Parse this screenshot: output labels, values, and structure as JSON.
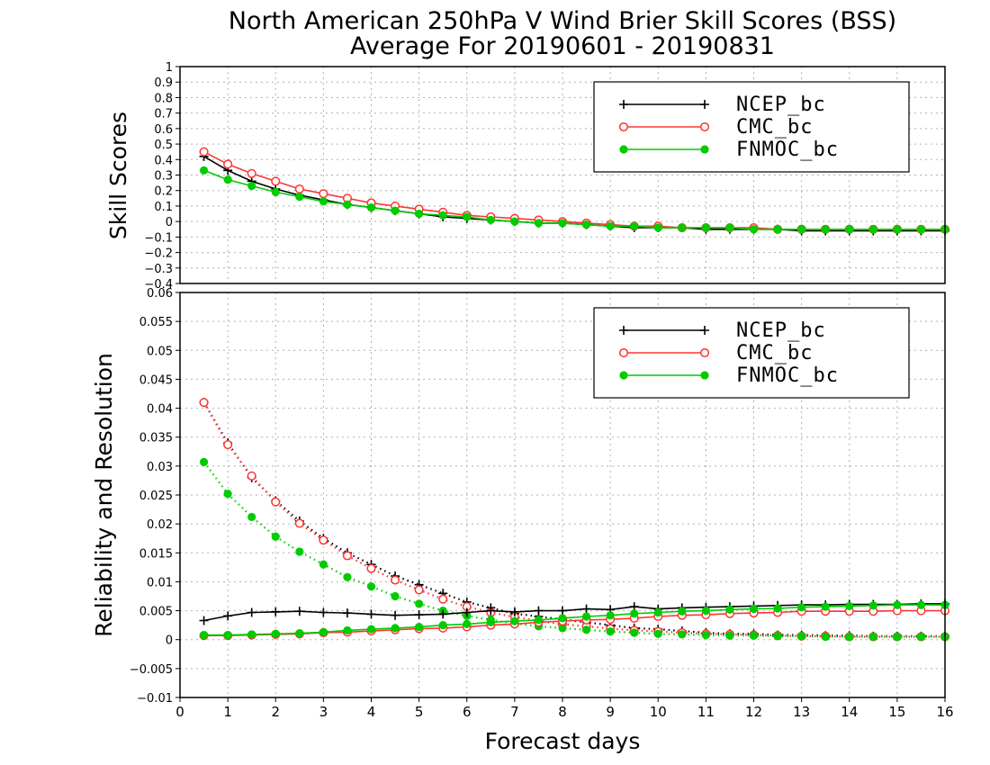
{
  "chart_data": {
    "title": "North American 250hPa V Wind Brier Skill Scores (BSS)",
    "subtitle": "Average For 20190601 - 20190831",
    "xlabel": "Forecast days",
    "xlim": [
      0,
      16
    ],
    "x_ticks": [
      "0",
      "1",
      "2",
      "3",
      "4",
      "5",
      "6",
      "7",
      "8",
      "9",
      "10",
      "11",
      "12",
      "13",
      "14",
      "15",
      "16"
    ],
    "x": [
      0.5,
      1,
      1.5,
      2,
      2.5,
      3,
      3.5,
      4,
      4.5,
      5,
      5.5,
      6,
      6.5,
      7,
      7.5,
      8,
      8.5,
      9,
      9.5,
      10,
      10.5,
      11,
      11.5,
      12,
      12.5,
      13,
      13.5,
      14,
      14.5,
      15,
      15.5,
      16
    ],
    "grid": true,
    "panels": [
      {
        "type": "line",
        "ylabel": "Skill Scores",
        "ylim": [
          -0.4,
          1
        ],
        "y_ticks": [
          "−0.4",
          "−0.3",
          "−0.2",
          "−0.1",
          "0",
          "0.1",
          "0.2",
          "0.3",
          "0.4",
          "0.5",
          "0.6",
          "0.7",
          "0.8",
          "0.9",
          "1"
        ],
        "legend": [
          "NCEP_bc",
          "CMC_bc",
          "FNMOC_bc"
        ],
        "legend_position": "top-right",
        "series": [
          {
            "name": "NCEP_bc",
            "color": "#000000",
            "marker": "plus",
            "style": "solid",
            "values": [
              0.42,
              0.33,
              0.26,
              0.21,
              0.17,
              0.14,
              0.11,
              0.09,
              0.07,
              0.05,
              0.03,
              0.02,
              0.01,
              0.0,
              -0.01,
              -0.01,
              -0.02,
              -0.03,
              -0.04,
              -0.04,
              -0.04,
              -0.05,
              -0.05,
              -0.05,
              -0.05,
              -0.06,
              -0.06,
              -0.06,
              -0.06,
              -0.06,
              -0.06,
              -0.06
            ]
          },
          {
            "name": "CMC_bc",
            "color": "#ff3333",
            "marker": "open-circle",
            "style": "solid",
            "values": [
              0.45,
              0.37,
              0.31,
              0.26,
              0.21,
              0.18,
              0.15,
              0.12,
              0.1,
              0.08,
              0.06,
              0.04,
              0.03,
              0.02,
              0.01,
              0.0,
              -0.01,
              -0.02,
              -0.03,
              -0.03,
              -0.04,
              -0.04,
              -0.04,
              -0.04,
              -0.05,
              -0.05,
              -0.05,
              -0.05,
              -0.05,
              -0.05,
              -0.05,
              -0.05
            ]
          },
          {
            "name": "FNMOC_bc",
            "color": "#00cc00",
            "marker": "filled-circle",
            "style": "solid",
            "values": [
              0.33,
              0.27,
              0.23,
              0.19,
              0.16,
              0.13,
              0.11,
              0.09,
              0.07,
              0.05,
              0.04,
              0.03,
              0.01,
              0.0,
              -0.01,
              -0.01,
              -0.02,
              -0.03,
              -0.03,
              -0.04,
              -0.04,
              -0.04,
              -0.04,
              -0.05,
              -0.05,
              -0.05,
              -0.05,
              -0.05,
              -0.05,
              -0.05,
              -0.05,
              -0.05
            ]
          }
        ]
      },
      {
        "type": "line",
        "ylabel": "Reliability and Resolution",
        "ylim": [
          -0.01,
          0.06
        ],
        "y_ticks": [
          "−0.01",
          "−0.005",
          "0",
          "0.005",
          "0.01",
          "0.015",
          "0.02",
          "0.025",
          "0.03",
          "0.035",
          "0.04",
          "0.045",
          "0.05",
          "0.055",
          "0.06"
        ],
        "legend": [
          "NCEP_bc",
          "CMC_bc",
          "FNMOC_bc"
        ],
        "legend_position": "top-right",
        "series": [
          {
            "name": "NCEP_bc",
            "color": "#000000",
            "marker": "plus",
            "style": "dotted",
            "values": [
              0.041,
              0.034,
              0.028,
              0.024,
              0.0205,
              0.0175,
              0.015,
              0.013,
              0.011,
              0.0095,
              0.008,
              0.0065,
              0.0055,
              0.0045,
              0.004,
              0.0035,
              0.003,
              0.0025,
              0.002,
              0.0018,
              0.0015,
              0.0012,
              0.001,
              0.001,
              0.0008,
              0.0008,
              0.0007,
              0.0007,
              0.0006,
              0.0006,
              0.0006,
              0.0006
            ]
          },
          {
            "name": "CMC_bc",
            "color": "#ff3333",
            "marker": "open-circle",
            "style": "dotted",
            "values": [
              0.041,
              0.0337,
              0.0283,
              0.0238,
              0.0201,
              0.0172,
              0.0145,
              0.0123,
              0.0103,
              0.0086,
              0.007,
              0.0057,
              0.0047,
              0.0039,
              0.0032,
              0.0027,
              0.0023,
              0.0019,
              0.0016,
              0.0014,
              0.0012,
              0.001,
              0.0009,
              0.0008,
              0.0007,
              0.0006,
              0.0006,
              0.0005,
              0.0005,
              0.0005,
              0.0005,
              0.0005
            ]
          },
          {
            "name": "FNMOC_bc",
            "color": "#00cc00",
            "marker": "filled-circle",
            "style": "dotted",
            "values": [
              0.0307,
              0.0252,
              0.0212,
              0.0178,
              0.0152,
              0.013,
              0.0108,
              0.0092,
              0.0075,
              0.0062,
              0.005,
              0.0041,
              0.0034,
              0.0028,
              0.0023,
              0.002,
              0.0017,
              0.0014,
              0.0012,
              0.001,
              0.0009,
              0.0008,
              0.0007,
              0.0007,
              0.0006,
              0.0006,
              0.0005,
              0.0005,
              0.0005,
              0.0005,
              0.0005,
              0.0005
            ]
          },
          {
            "name": "NCEP_bc",
            "color": "#000000",
            "marker": "plus",
            "style": "solid",
            "values": [
              0.0033,
              0.0041,
              0.0047,
              0.0048,
              0.0049,
              0.0047,
              0.0046,
              0.0044,
              0.0042,
              0.0043,
              0.0044,
              0.0047,
              0.005,
              0.0048,
              0.005,
              0.005,
              0.0053,
              0.0052,
              0.0057,
              0.0053,
              0.0055,
              0.0056,
              0.0057,
              0.0058,
              0.0059,
              0.006,
              0.006,
              0.0061,
              0.0061,
              0.0061,
              0.0062,
              0.0062
            ]
          },
          {
            "name": "CMC_bc",
            "color": "#ff3333",
            "marker": "open-circle",
            "style": "solid",
            "values": [
              0.0007,
              0.0007,
              0.0008,
              0.0009,
              0.001,
              0.0012,
              0.0013,
              0.0015,
              0.0017,
              0.0019,
              0.002,
              0.0022,
              0.0025,
              0.0027,
              0.003,
              0.0032,
              0.0034,
              0.0035,
              0.0037,
              0.004,
              0.0042,
              0.0043,
              0.0045,
              0.0046,
              0.0047,
              0.0049,
              0.0049,
              0.0049,
              0.0049,
              0.005,
              0.005,
              0.005
            ]
          },
          {
            "name": "FNMOC_bc",
            "color": "#00cc00",
            "marker": "filled-circle",
            "style": "solid",
            "values": [
              0.0008,
              0.0008,
              0.0009,
              0.001,
              0.0011,
              0.0013,
              0.0016,
              0.0018,
              0.002,
              0.0022,
              0.0025,
              0.0027,
              0.003,
              0.0032,
              0.0034,
              0.0037,
              0.004,
              0.0042,
              0.0045,
              0.0047,
              0.0049,
              0.005,
              0.0052,
              0.0053,
              0.0054,
              0.0056,
              0.0057,
              0.0058,
              0.0059,
              0.006,
              0.006,
              0.006
            ]
          }
        ]
      }
    ]
  }
}
